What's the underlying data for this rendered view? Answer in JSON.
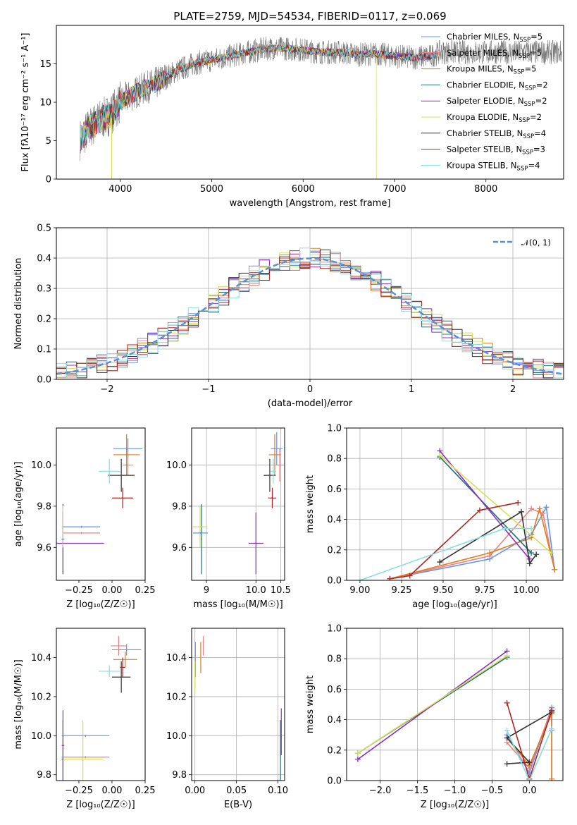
{
  "colors": [
    "#6495ed",
    "#f08080",
    "#e07b1a",
    "#1f6f6f",
    "#8b2fbf",
    "#d4e157",
    "#333333",
    "#b22222",
    "#87dfe0"
  ],
  "chart_data": [
    {
      "id": "spectrum",
      "type": "line",
      "title": "PLATE=2759, MJD=54534, FIBERID=0117, z=0.069",
      "xlabel": "wavelength [Angstrom, rest frame]",
      "ylabel": "Flux [f_λ10^{-17} erg cm^{-2} s^{-1} A^{-1}]",
      "xlim": [
        3300,
        8850
      ],
      "ylim": [
        0,
        20
      ],
      "xticks": [
        4000,
        5000,
        6000,
        7000,
        8000
      ],
      "yticks": [
        0,
        5,
        10,
        15
      ],
      "grid": false,
      "legend_position": "top-right",
      "continuum": [
        [
          3550,
          5
        ],
        [
          3650,
          6.5
        ],
        [
          3750,
          7.5
        ],
        [
          3900,
          8.5
        ],
        [
          4000,
          10
        ],
        [
          4200,
          11.5
        ],
        [
          4400,
          12.5
        ],
        [
          4600,
          14
        ],
        [
          4800,
          15
        ],
        [
          5000,
          15.5
        ],
        [
          5200,
          16
        ],
        [
          5400,
          16.5
        ],
        [
          5600,
          17
        ],
        [
          5800,
          17
        ],
        [
          6000,
          16.8
        ],
        [
          6200,
          16.5
        ],
        [
          6400,
          16.5
        ],
        [
          6600,
          16.2
        ],
        [
          6800,
          16.3
        ],
        [
          7000,
          16
        ],
        [
          7200,
          15.8
        ],
        [
          7400,
          16
        ],
        [
          7500,
          16.5
        ]
      ],
      "series": [
        {
          "name": "Chabrier MILES, N_SSP=5"
        },
        {
          "name": "Salpeter MILES, N_SSP=5"
        },
        {
          "name": "Kroupa MILES, N_SSP=5"
        },
        {
          "name": "Chabrier ELODIE, N_SSP=2"
        },
        {
          "name": "Salpeter ELODIE, N_SSP=2"
        },
        {
          "name": "Kroupa ELODIE, N_SSP=2"
        },
        {
          "name": "Chabrier STELIB, N_SSP=4"
        },
        {
          "name": "Salpeter STELIB, N_SSP=3"
        },
        {
          "name": "Kroupa STELIB, N_SSP=4"
        }
      ],
      "legend_rows": [
        {
          "label": "Chabrier MILES, N",
          "sub": "SSP",
          "tail": "=5"
        },
        {
          "label": "Salpeter MILES, N",
          "sub": "SSP",
          "tail": "=5"
        },
        {
          "label": "Kroupa MILES, N",
          "sub": "SSP",
          "tail": "=5"
        },
        {
          "label": "Chabrier ELODIE, N",
          "sub": "SSP",
          "tail": "=2"
        },
        {
          "label": "Salpeter ELODIE, N",
          "sub": "SSP",
          "tail": "=2"
        },
        {
          "label": "Kroupa ELODIE, N",
          "sub": "SSP",
          "tail": "=2"
        },
        {
          "label": "Chabrier STELIB, N",
          "sub": "SSP",
          "tail": "=4"
        },
        {
          "label": "Salpeter STELIB, N",
          "sub": "SSP",
          "tail": "=3"
        },
        {
          "label": "Kroupa STELIB, N",
          "sub": "SSP",
          "tail": "=4"
        }
      ]
    },
    {
      "id": "residuals",
      "type": "histogram",
      "xlabel": "(data-model)/error",
      "ylabel": "Normed distribution",
      "xlim": [
        -2.5,
        2.5
      ],
      "ylim": [
        0,
        0.5
      ],
      "xticks": [
        -2,
        -1,
        0,
        1,
        2
      ],
      "xticklabels": [
        "−2",
        "−1",
        "0",
        "1",
        "2"
      ],
      "yticks": [
        0.0,
        0.1,
        0.2,
        0.3,
        0.4,
        0.5
      ],
      "yticklabels": [
        "0.0",
        "0.1",
        "0.2",
        "0.3",
        "0.4",
        "0.5"
      ],
      "grid": true,
      "bin_width": 0.1,
      "reference_curve": {
        "name": "𝒩(0, 1)",
        "mean": 0,
        "sigma": 1,
        "style": "dashed"
      },
      "legend_position": "top-right"
    },
    {
      "id": "age_vs_Z",
      "type": "errorbar",
      "xlabel": "Z [log₁₀(Z/Z☉)]",
      "ylabel": "age  [log₁₀(age/yr)]",
      "xlim": [
        -0.42,
        0.25
      ],
      "ylim": [
        9.44,
        10.18
      ],
      "xticks": [
        -0.25,
        0.0,
        0.25
      ],
      "xticklabels": [
        "−0.25",
        "0.00",
        "0.25"
      ],
      "yticks": [
        9.6,
        9.8,
        10.0
      ],
      "yticklabels": [
        "9.6",
        "9.8",
        "10.0"
      ],
      "grid": false,
      "points": [
        {
          "x": 0.12,
          "xerr": 0.11,
          "y": 10.08,
          "yerr": 0.05
        },
        {
          "x": 0.12,
          "xerr": 0.04,
          "y": 10.0,
          "yerr": 0.05
        },
        {
          "x": 0.11,
          "xerr": 0.1,
          "y": 10.05,
          "yerr": 0.1
        },
        {
          "x": -0.37,
          "xerr": 0.01,
          "y": 9.64,
          "yerr": 0.17
        },
        {
          "x": -0.37,
          "xerr": 0.31,
          "y": 9.62,
          "yerr": 0.15
        },
        {
          "x": -0.37,
          "xerr": 0.01,
          "y": 9.7,
          "yerr": 0.1
        },
        {
          "x": 0.07,
          "xerr": 0.1,
          "y": 9.95,
          "yerr": 0.08
        },
        {
          "x": 0.08,
          "xerr": 0.08,
          "y": 9.84,
          "yerr": 0.05
        },
        {
          "x": -0.02,
          "xerr": 0.08,
          "y": 9.97,
          "yerr": 0.06
        },
        {
          "x": -0.23,
          "xerr": 0.14,
          "y": 9.7,
          "yerr": 0.005
        },
        {
          "x": -0.23,
          "xerr": 0.14,
          "y": 9.67,
          "yerr": 0.005
        }
      ]
    },
    {
      "id": "age_vs_mass",
      "type": "errorbar",
      "xlabel": "mass [log₁₀(M/M☉)]",
      "ylabel": "",
      "xlim": [
        8.7,
        10.58
      ],
      "ylim": [
        9.44,
        10.18
      ],
      "xticks": [
        9.0,
        10.0,
        10.5
      ],
      "xticklabels": [
        "9",
        "10.0",
        "10.5"
      ],
      "ytick_values": [
        9.6,
        9.8,
        10.0
      ],
      "yticklabels": [
        "9.6",
        "9.8",
        "10.0"
      ],
      "grid": true,
      "points": [
        {
          "x": 10.42,
          "xerr": 0.12,
          "y": 10.08,
          "yerr": 0.08
        },
        {
          "x": 10.48,
          "xerr": 0.08,
          "y": 10.0,
          "yerr": 0.08
        },
        {
          "x": 10.38,
          "xerr": 0.12,
          "y": 10.05,
          "yerr": 0.1
        },
        {
          "x": 8.9,
          "xerr": 0.01,
          "y": 9.64,
          "yerr": 0.17
        },
        {
          "x": 10.0,
          "xerr": 0.15,
          "y": 9.62,
          "yerr": 0.15
        },
        {
          "x": 8.87,
          "xerr": 0.15,
          "y": 9.7,
          "yerr": 0.1
        },
        {
          "x": 10.28,
          "xerr": 0.12,
          "y": 9.95,
          "yerr": 0.08
        },
        {
          "x": 10.33,
          "xerr": 0.08,
          "y": 9.84,
          "yerr": 0.05
        },
        {
          "x": 10.35,
          "xerr": 0.06,
          "y": 9.97,
          "yerr": 0.06
        },
        {
          "x": 8.88,
          "xerr": 0.15,
          "y": 9.67,
          "yerr": 0.005
        }
      ]
    },
    {
      "id": "massweight_vs_age",
      "type": "line",
      "xlabel": "age  [log₁₀(age/yr)]",
      "ylabel": "mass weight",
      "xlim": [
        8.92,
        10.22
      ],
      "ylim": [
        0,
        1
      ],
      "xticks": [
        9.0,
        9.25,
        9.5,
        9.75,
        10.0
      ],
      "xticklabels": [
        "9.00",
        "9.25",
        "9.50",
        "9.75",
        "10.00"
      ],
      "yticks": [
        0.0,
        0.2,
        0.4,
        0.6,
        0.8,
        1.0
      ],
      "yticklabels": [
        "0.0",
        "0.2",
        "0.4",
        "0.6",
        "0.8",
        "1.0"
      ],
      "grid": true,
      "series": [
        {
          "points": [
            [
              9.18,
              0.01
            ],
            [
              9.78,
              0.14
            ],
            [
              10.03,
              0.3
            ],
            [
              10.12,
              0.48
            ],
            [
              10.17,
              0.07
            ]
          ]
        },
        {
          "points": [
            [
              9.18,
              0.01
            ],
            [
              9.78,
              0.16
            ],
            [
              10.03,
              0.47
            ],
            [
              10.1,
              0.44
            ],
            [
              10.17,
              0.07
            ]
          ]
        },
        {
          "points": [
            [
              9.18,
              0.01
            ],
            [
              9.78,
              0.18
            ],
            [
              10.03,
              0.28
            ],
            [
              10.08,
              0.47
            ],
            [
              10.17,
              0.07
            ]
          ]
        },
        {
          "points": [
            [
              9.48,
              0.81
            ],
            [
              10.03,
              0.18
            ]
          ]
        },
        {
          "points": [
            [
              9.48,
              0.85
            ],
            [
              10.02,
              0.14
            ]
          ]
        },
        {
          "points": [
            [
              9.48,
              0.82
            ],
            [
              10.15,
              0.18
            ]
          ]
        },
        {
          "points": [
            [
              9.48,
              0.12
            ],
            [
              9.97,
              0.45
            ],
            [
              10.02,
              0.11
            ],
            [
              10.06,
              0.17
            ]
          ]
        },
        {
          "points": [
            [
              9.18,
              0.01
            ],
            [
              9.3,
              0.03
            ],
            [
              9.72,
              0.46
            ],
            [
              9.95,
              0.51
            ]
          ]
        },
        {
          "points": [
            [
              9.0,
              0.0
            ],
            [
              9.87,
              0.34
            ],
            [
              10.03,
              0.34
            ]
          ]
        }
      ]
    },
    {
      "id": "mass_vs_Z",
      "type": "errorbar",
      "xlabel": "Z [log₁₀(Z/Z☉)]",
      "ylabel": "mass [log₁₀(M/M☉)]",
      "xlim": [
        -0.42,
        0.25
      ],
      "ylim": [
        9.77,
        10.55
      ],
      "xticks": [
        -0.25,
        0.0,
        0.25
      ],
      "xticklabels": [
        "−0.25",
        "0.00",
        "0.25"
      ],
      "yticks": [
        9.8,
        10.0,
        10.2,
        10.4
      ],
      "yticklabels": [
        "9.8",
        "10.0",
        "10.2",
        "10.4"
      ],
      "grid": false,
      "points": [
        {
          "x": 0.11,
          "xerr": 0.11,
          "y": 10.44,
          "yerr": 0.03
        },
        {
          "x": 0.05,
          "xerr": 0.06,
          "y": 10.46,
          "yerr": 0.05
        },
        {
          "x": 0.1,
          "xerr": 0.09,
          "y": 10.39,
          "yerr": 0.04
        },
        {
          "x": -0.37,
          "xerr": 0.01,
          "y": 9.88,
          "yerr": 0.2
        },
        {
          "x": -0.37,
          "xerr": 0.01,
          "y": 9.95,
          "yerr": 0.18
        },
        {
          "x": -0.22,
          "xerr": 0.15,
          "y": 9.88,
          "yerr": 0.2
        },
        {
          "x": 0.07,
          "xerr": 0.07,
          "y": 10.3,
          "yerr": 0.08
        },
        {
          "x": 0.08,
          "xerr": 0.02,
          "y": 10.35,
          "yerr": 0.05
        },
        {
          "x": -0.02,
          "xerr": 0.08,
          "y": 10.33,
          "yerr": 0.03
        },
        {
          "x": -0.2,
          "xerr": 0.18,
          "y": 10.0,
          "yerr": 0.005
        },
        {
          "x": -0.2,
          "xerr": 0.18,
          "y": 9.89,
          "yerr": 0.005
        }
      ]
    },
    {
      "id": "mass_vs_EBV",
      "type": "errorbar",
      "xlabel": "E(B-V)",
      "ylabel": "",
      "xlim": [
        -0.004,
        0.108
      ],
      "ylim": [
        9.77,
        10.55
      ],
      "xticks": [
        0.0,
        0.05,
        0.1
      ],
      "xticklabels": [
        "0.00",
        "0.05",
        "0.10"
      ],
      "yticks": [
        9.8,
        10.0,
        10.2,
        10.4
      ],
      "yticklabels": [
        "9.8",
        "10.0",
        "10.2",
        "10.4"
      ],
      "grid": true,
      "points": [
        {
          "x": 0.0005,
          "xerr": 0.0,
          "y": 10.39,
          "yerr": 0.09
        },
        {
          "x": 0.01,
          "xerr": 0.0,
          "y": 10.46,
          "yerr": 0.05
        },
        {
          "x": 0.007,
          "xerr": 0.0,
          "y": 10.4,
          "yerr": 0.08
        },
        {
          "x": 0.103,
          "xerr": 0.0,
          "y": 9.88,
          "yerr": 0.2
        },
        {
          "x": 0.104,
          "xerr": 0.0,
          "y": 10.02,
          "yerr": 0.12
        },
        {
          "x": 0.0,
          "xerr": 0.0,
          "y": 10.3,
          "yerr": 0.08
        }
      ]
    },
    {
      "id": "massweight_vs_Z",
      "type": "line",
      "xlabel": "Z [log₁₀(Z/Z☉)]",
      "ylabel": "mass weight",
      "xlim": [
        -2.45,
        0.45
      ],
      "ylim": [
        0,
        1
      ],
      "xticks": [
        -2.0,
        -1.5,
        -1.0,
        -0.5,
        0.0
      ],
      "xticklabels": [
        "−2.0",
        "−1.5",
        "−1.0",
        "−0.5",
        "0.0"
      ],
      "yticks": [
        0.0,
        0.2,
        0.4,
        0.6,
        0.8,
        1.0
      ],
      "yticklabels": [
        "0.0",
        "0.2",
        "0.4",
        "0.6",
        "0.8",
        "1.0"
      ],
      "grid": true,
      "series": [
        {
          "points": [
            [
              -0.3,
              0.3
            ],
            [
              0.0,
              0.05
            ],
            [
              0.3,
              0.48
            ],
            [
              0.3,
              0.33
            ]
          ]
        },
        {
          "points": [
            [
              -0.3,
              0.25
            ],
            [
              0.0,
              0.08
            ],
            [
              0.3,
              0.47
            ],
            [
              0.3,
              0.01
            ]
          ]
        },
        {
          "points": [
            [
              -0.3,
              0.28
            ],
            [
              0.0,
              0.1
            ],
            [
              0.3,
              0.44
            ],
            [
              0.3,
              0.01
            ]
          ]
        },
        {
          "points": [
            [
              -2.3,
              0.18
            ],
            [
              -0.3,
              0.81
            ]
          ]
        },
        {
          "points": [
            [
              -2.3,
              0.14
            ],
            [
              -0.3,
              0.85
            ]
          ]
        },
        {
          "points": [
            [
              -2.3,
              0.18
            ],
            [
              -0.3,
              0.82
            ]
          ]
        },
        {
          "points": [
            [
              -0.3,
              0.11
            ],
            [
              0.0,
              0.12
            ],
            [
              -0.3,
              0.28
            ],
            [
              0.3,
              0.45
            ]
          ]
        },
        {
          "points": [
            [
              -0.3,
              0.51
            ],
            [
              0.0,
              0.01
            ],
            [
              0.3,
              0.46
            ]
          ]
        },
        {
          "points": [
            [
              -0.3,
              0.33
            ],
            [
              0.0,
              0.0
            ],
            [
              0.3,
              0.34
            ]
          ]
        }
      ]
    }
  ]
}
